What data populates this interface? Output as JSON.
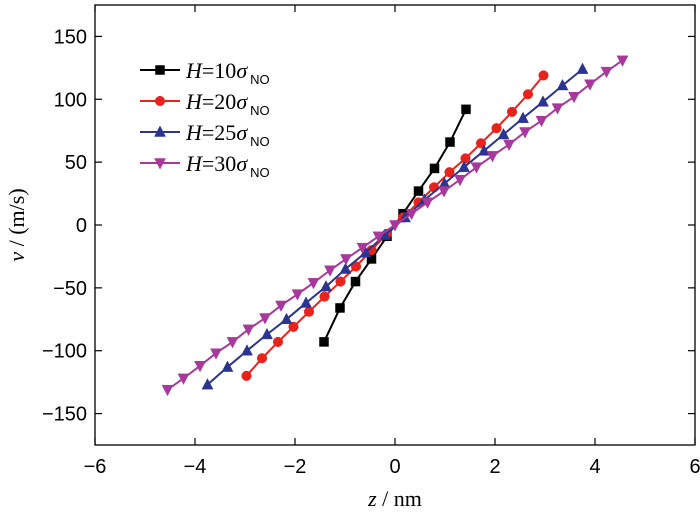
{
  "chart_data": {
    "type": "line",
    "xlim": [
      -6,
      6
    ],
    "ylim": [
      -175,
      175
    ],
    "xticks": [
      -6,
      -4,
      -2,
      0,
      2,
      4,
      6
    ],
    "yticks": [
      -150,
      -100,
      -50,
      0,
      50,
      100,
      150
    ],
    "xlabel": {
      "var": "z",
      "unit": " / nm"
    },
    "ylabel": {
      "var": "v",
      "unit": " / (m/s)"
    },
    "grid": false,
    "legend_position": "top-left",
    "series": [
      {
        "name": "H=10σNO",
        "label_var": "H",
        "label_eq": "=10",
        "label_sym": "σ",
        "label_sub": "NO",
        "color": "#000000",
        "marker": "square",
        "x": [
          -1.42,
          -1.1,
          -0.79,
          -0.47,
          -0.16,
          0.16,
          0.47,
          0.79,
          1.1,
          1.42
        ],
        "y": [
          -93,
          -66,
          -45,
          -27,
          -9,
          9,
          27,
          45,
          66,
          92
        ]
      },
      {
        "name": "H=20σNO",
        "label_var": "H",
        "label_eq": "=20",
        "label_sym": "σ",
        "label_sub": "NO",
        "color": "#e8221c",
        "marker": "circle",
        "x": [
          -2.97,
          -2.66,
          -2.34,
          -2.03,
          -1.72,
          -1.41,
          -1.09,
          -0.78,
          -0.47,
          -0.16,
          0.16,
          0.47,
          0.78,
          1.09,
          1.41,
          1.72,
          2.03,
          2.34,
          2.66,
          2.97
        ],
        "y": [
          -120,
          -106,
          -93,
          -81,
          -69,
          -57,
          -45,
          -33,
          -20,
          -7,
          6,
          18,
          30,
          42,
          53,
          65,
          77,
          90,
          104,
          119
        ]
      },
      {
        "name": "H=25σNO",
        "label_var": "H",
        "label_eq": "=25",
        "label_sym": "σ",
        "label_sub": "NO",
        "color": "#2b3590",
        "marker": "triangle-up",
        "x": [
          -3.75,
          -3.35,
          -2.96,
          -2.56,
          -2.17,
          -1.78,
          -1.38,
          -0.99,
          -0.59,
          -0.2,
          0.2,
          0.59,
          0.99,
          1.38,
          1.78,
          2.17,
          2.56,
          2.96,
          3.35,
          3.75
        ],
        "y": [
          -127,
          -113,
          -100,
          -87,
          -75,
          -62,
          -49,
          -35,
          -22,
          -8,
          6,
          20,
          33,
          46,
          59,
          72,
          85,
          98,
          111,
          124
        ]
      },
      {
        "name": "H=30σNO",
        "label_var": "H",
        "label_eq": "=30",
        "label_sym": "σ",
        "label_sub": "NO",
        "color": "#a8389c",
        "marker": "triangle-down",
        "x": [
          -4.55,
          -4.23,
          -3.9,
          -3.58,
          -3.25,
          -2.93,
          -2.6,
          -2.28,
          -1.95,
          -1.63,
          -1.3,
          -0.98,
          -0.65,
          -0.33,
          0.0,
          0.33,
          0.65,
          0.98,
          1.3,
          1.63,
          1.95,
          2.28,
          2.6,
          2.93,
          3.25,
          3.58,
          3.9,
          4.23,
          4.55
        ],
        "y": [
          -131,
          -122,
          -112,
          -102,
          -93,
          -83,
          -74,
          -64,
          -55,
          -46,
          -36,
          -27,
          -18,
          -9,
          0,
          9,
          18,
          27,
          36,
          46,
          55,
          64,
          74,
          83,
          93,
          102,
          112,
          122,
          131
        ]
      }
    ]
  }
}
